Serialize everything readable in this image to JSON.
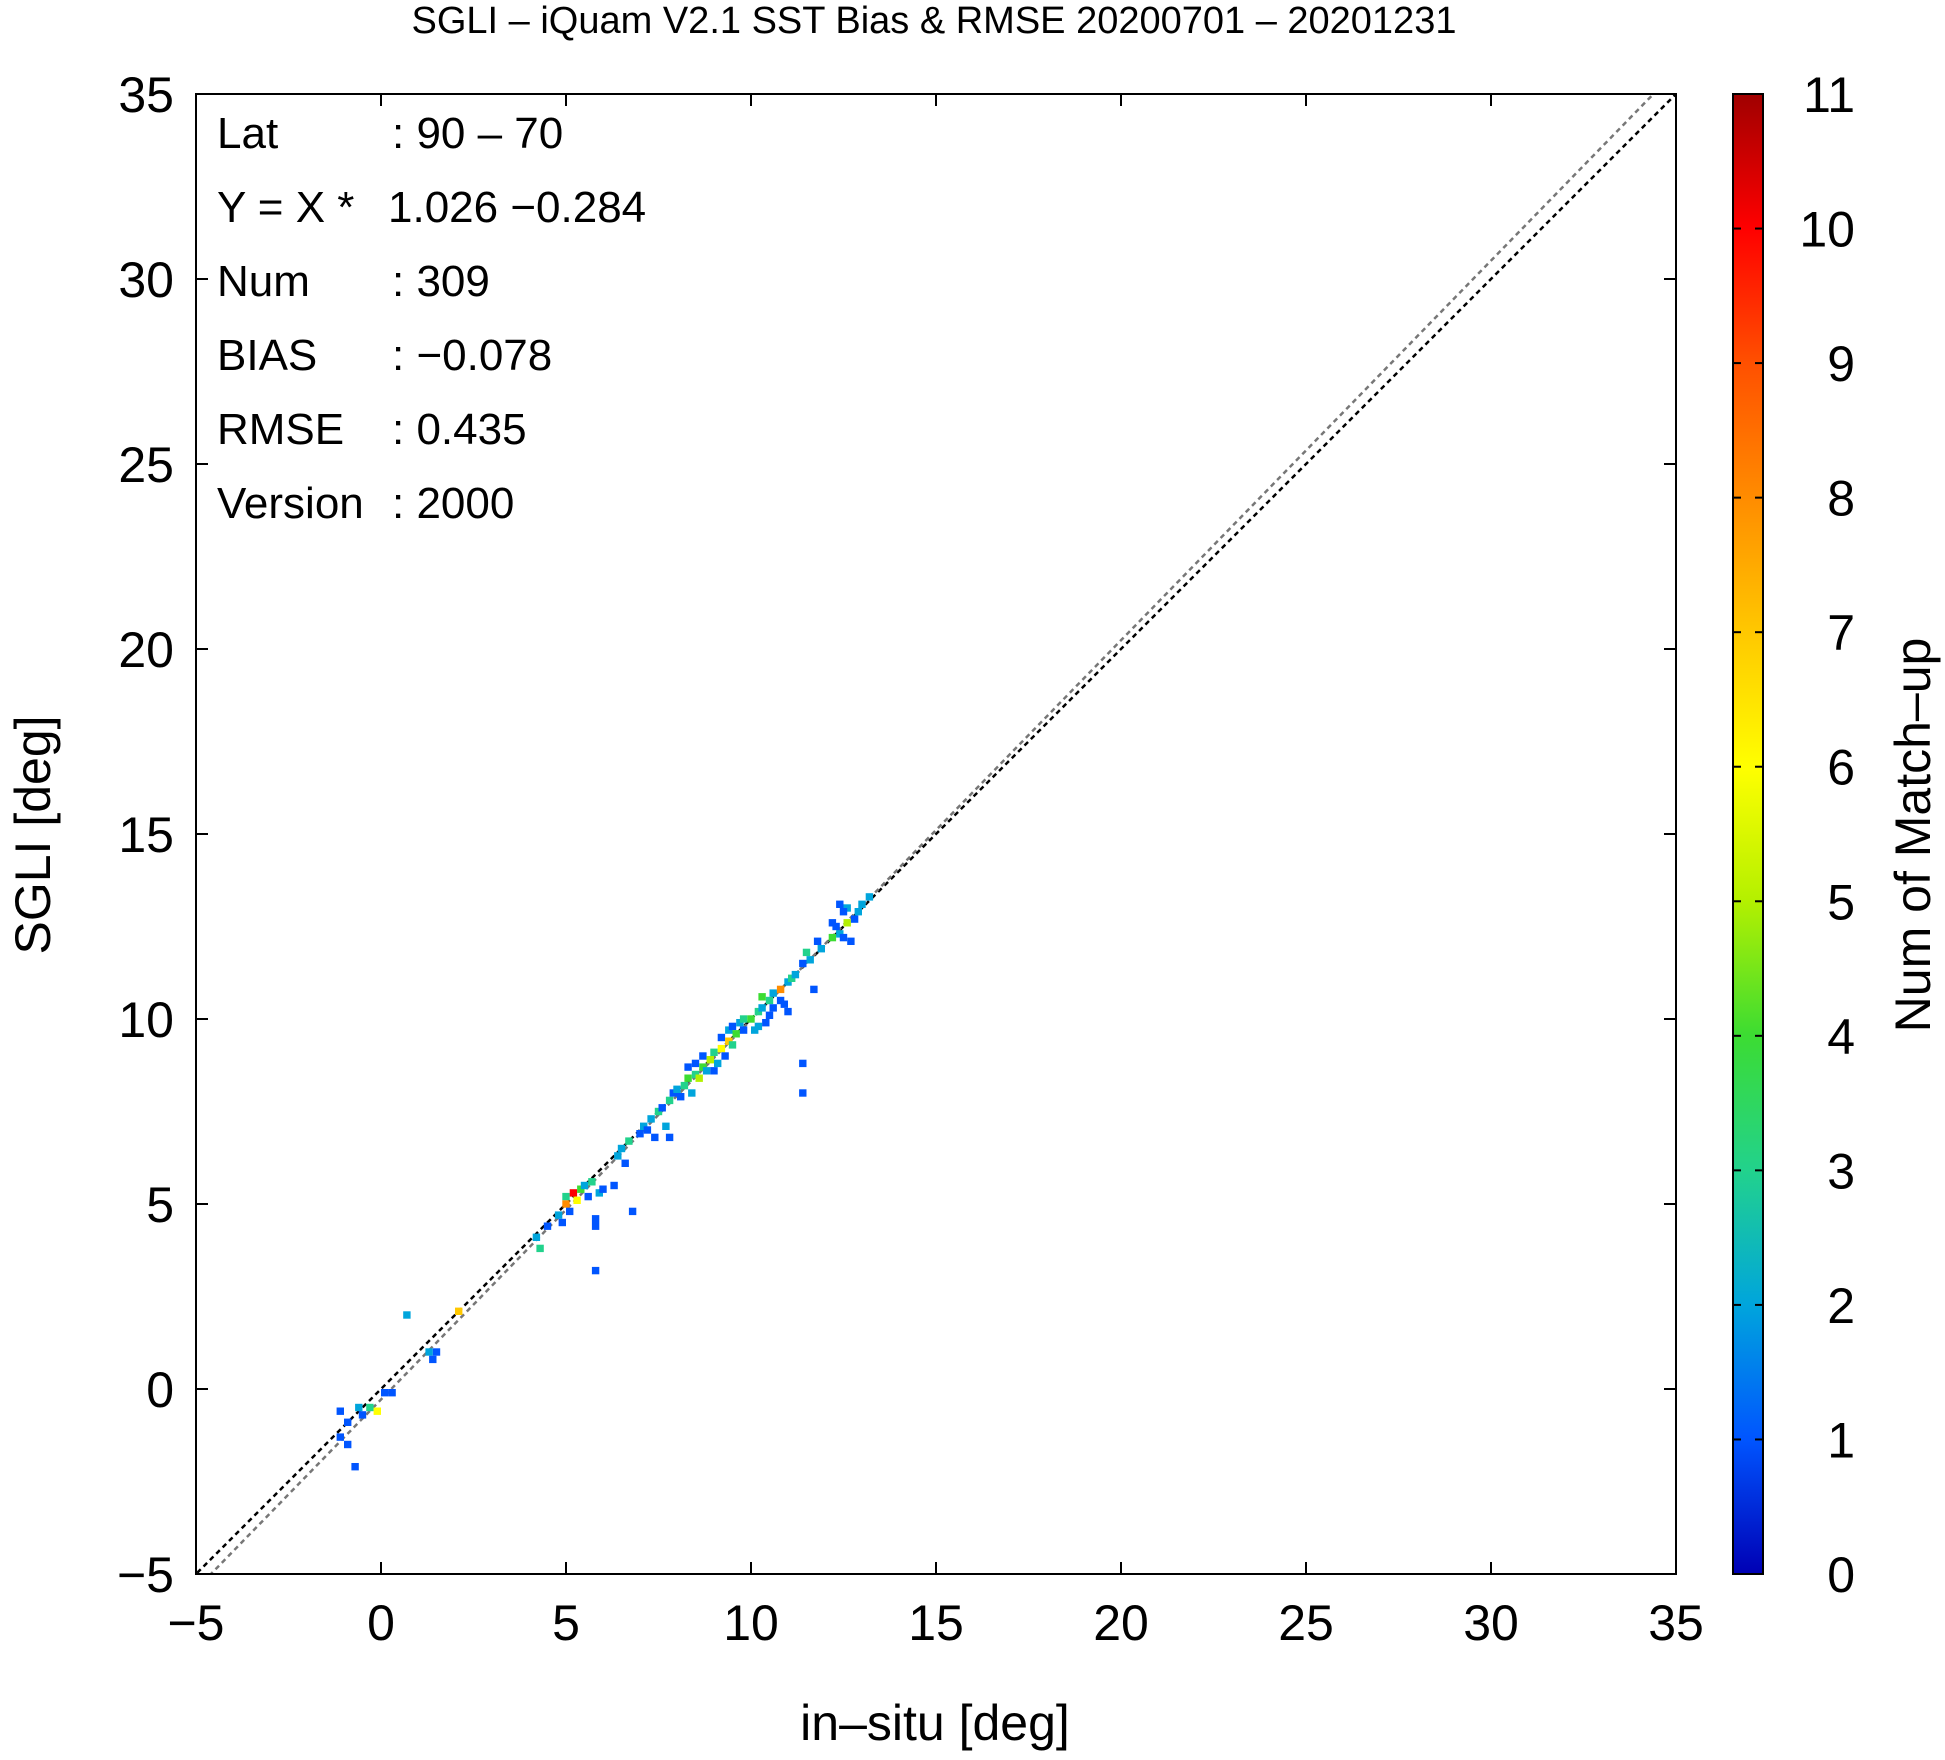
{
  "chart_data": {
    "type": "heatmap",
    "title": "SGLI – iQuam V2.1 SST Bias & RMSE 20200701 – 20201231",
    "xlabel": "in–situ [deg]",
    "ylabel": "SGLI [deg]",
    "xlim": [
      -5,
      35
    ],
    "ylim": [
      -5,
      35
    ],
    "x_ticks": [
      -5,
      0,
      5,
      10,
      15,
      20,
      25,
      30,
      35
    ],
    "y_ticks": [
      -5,
      0,
      5,
      10,
      15,
      20,
      25,
      30,
      35
    ],
    "x_tick_labels": [
      "−5",
      "0",
      "5",
      "10",
      "15",
      "20",
      "25",
      "30",
      "35"
    ],
    "y_tick_labels": [
      "−5",
      "0",
      "5",
      "10",
      "15",
      "20",
      "25",
      "30",
      "35"
    ],
    "bin_size": 0.2,
    "grid": false,
    "stats": [
      {
        "label": "Lat",
        "value": ": 90 – 70"
      },
      {
        "label": "Y = X *",
        "value": "1.026 −0.284"
      },
      {
        "label": "Num",
        "value": ": 309"
      },
      {
        "label": "BIAS",
        "value": ": −0.078"
      },
      {
        "label": "RMSE",
        "value": ": 0.435"
      },
      {
        "label": "Version",
        "value": ": 2000"
      }
    ],
    "lines": [
      {
        "type": "identity",
        "slope": 1,
        "intercept": 0,
        "color": "#000000",
        "dash": true
      },
      {
        "type": "regression",
        "slope": 1.026,
        "intercept": -0.284,
        "color": "#777777",
        "dash": true
      }
    ],
    "colorbar": {
      "label": "Num of Match–up",
      "min": 0,
      "max": 11,
      "ticks": [
        0,
        1,
        2,
        3,
        4,
        5,
        6,
        7,
        8,
        9,
        10,
        11
      ],
      "colors": [
        "#0000b4",
        "#0055ff",
        "#00a5dc",
        "#22d28c",
        "#3cdc32",
        "#b4f000",
        "#ffff00",
        "#ffc800",
        "#ff8c00",
        "#ff5000",
        "#ff0000",
        "#a00000"
      ]
    },
    "points": [
      [
        -1.1,
        -0.6,
        1
      ],
      [
        -0.9,
        -0.9,
        1
      ],
      [
        -1.1,
        -1.3,
        1
      ],
      [
        -0.9,
        -1.5,
        1
      ],
      [
        -0.7,
        -2.1,
        1
      ],
      [
        -0.6,
        -0.5,
        2
      ],
      [
        -0.5,
        -0.7,
        1
      ],
      [
        -0.3,
        -0.5,
        3
      ],
      [
        -0.1,
        -0.6,
        6
      ],
      [
        0.1,
        -0.1,
        1
      ],
      [
        0.3,
        -0.1,
        1
      ],
      [
        0.7,
        2.0,
        2
      ],
      [
        1.3,
        1.0,
        2
      ],
      [
        1.4,
        0.8,
        1
      ],
      [
        1.5,
        1.0,
        1
      ],
      [
        2.1,
        2.1,
        7
      ],
      [
        4.2,
        4.1,
        2
      ],
      [
        4.3,
        3.8,
        3
      ],
      [
        4.5,
        4.4,
        1
      ],
      [
        4.8,
        4.7,
        2
      ],
      [
        4.9,
        4.5,
        1
      ],
      [
        5.0,
        5.2,
        3
      ],
      [
        5.0,
        5.0,
        8
      ],
      [
        5.1,
        4.8,
        1
      ],
      [
        5.2,
        5.3,
        10
      ],
      [
        5.3,
        5.1,
        6
      ],
      [
        5.4,
        5.4,
        4
      ],
      [
        5.5,
        5.5,
        2
      ],
      [
        5.6,
        5.2,
        1
      ],
      [
        5.7,
        5.6,
        3
      ],
      [
        5.8,
        4.6,
        1
      ],
      [
        5.8,
        4.4,
        1
      ],
      [
        5.8,
        3.2,
        1
      ],
      [
        5.9,
        5.3,
        2
      ],
      [
        6.0,
        5.4,
        1
      ],
      [
        6.3,
        5.5,
        1
      ],
      [
        6.4,
        6.3,
        2
      ],
      [
        6.5,
        6.5,
        2
      ],
      [
        6.6,
        6.1,
        1
      ],
      [
        6.7,
        6.7,
        3
      ],
      [
        6.8,
        4.8,
        1
      ],
      [
        7.0,
        6.9,
        1
      ],
      [
        7.1,
        7.1,
        2
      ],
      [
        7.2,
        7.0,
        1
      ],
      [
        7.3,
        7.3,
        2
      ],
      [
        7.4,
        6.8,
        1
      ],
      [
        7.5,
        7.5,
        3
      ],
      [
        7.6,
        7.6,
        1
      ],
      [
        7.7,
        7.1,
        2
      ],
      [
        7.8,
        6.8,
        1
      ],
      [
        7.8,
        7.8,
        3
      ],
      [
        7.9,
        8.0,
        1
      ],
      [
        8.0,
        8.1,
        2
      ],
      [
        8.1,
        7.9,
        1
      ],
      [
        8.2,
        8.2,
        3
      ],
      [
        8.3,
        8.4,
        4
      ],
      [
        8.3,
        8.7,
        1
      ],
      [
        8.4,
        8.0,
        2
      ],
      [
        8.5,
        8.5,
        3
      ],
      [
        8.5,
        8.8,
        1
      ],
      [
        8.6,
        8.4,
        5
      ],
      [
        8.7,
        8.7,
        4
      ],
      [
        8.7,
        9.0,
        1
      ],
      [
        8.8,
        8.6,
        2
      ],
      [
        8.9,
        8.9,
        5
      ],
      [
        9.0,
        9.1,
        3
      ],
      [
        9.0,
        8.6,
        1
      ],
      [
        9.1,
        8.8,
        2
      ],
      [
        9.2,
        9.2,
        6
      ],
      [
        9.2,
        9.5,
        1
      ],
      [
        9.3,
        9.0,
        1
      ],
      [
        9.4,
        9.4,
        7
      ],
      [
        9.4,
        9.7,
        2
      ],
      [
        9.5,
        9.8,
        1
      ],
      [
        9.5,
        9.3,
        3
      ],
      [
        9.6,
        9.6,
        4
      ],
      [
        9.7,
        9.9,
        2
      ],
      [
        9.8,
        9.7,
        1
      ],
      [
        9.8,
        10.0,
        3
      ],
      [
        10.0,
        10.0,
        4
      ],
      [
        10.1,
        9.7,
        2
      ],
      [
        10.2,
        10.2,
        3
      ],
      [
        10.2,
        9.8,
        2
      ],
      [
        10.3,
        10.3,
        2
      ],
      [
        10.3,
        10.6,
        4
      ],
      [
        10.4,
        9.9,
        1
      ],
      [
        10.5,
        10.5,
        3
      ],
      [
        10.5,
        10.1,
        1
      ],
      [
        10.6,
        10.7,
        2
      ],
      [
        10.6,
        10.3,
        1
      ],
      [
        10.8,
        10.8,
        8
      ],
      [
        10.8,
        10.5,
        1
      ],
      [
        10.9,
        10.4,
        1
      ],
      [
        11.0,
        11.0,
        2
      ],
      [
        11.0,
        10.2,
        1
      ],
      [
        11.1,
        11.1,
        3
      ],
      [
        11.2,
        11.2,
        2
      ],
      [
        11.4,
        11.5,
        1
      ],
      [
        11.4,
        8.8,
        1
      ],
      [
        11.4,
        8.0,
        1
      ],
      [
        11.5,
        11.8,
        3
      ],
      [
        11.6,
        11.6,
        2
      ],
      [
        11.7,
        10.8,
        1
      ],
      [
        11.8,
        12.1,
        1
      ],
      [
        11.9,
        11.9,
        2
      ],
      [
        12.2,
        12.2,
        4
      ],
      [
        12.2,
        12.6,
        1
      ],
      [
        12.3,
        12.5,
        1
      ],
      [
        12.4,
        12.3,
        2
      ],
      [
        12.5,
        12.2,
        1
      ],
      [
        12.6,
        12.6,
        5
      ],
      [
        12.6,
        13.0,
        2
      ],
      [
        12.7,
        12.1,
        1
      ],
      [
        12.8,
        12.7,
        1
      ],
      [
        12.9,
        12.9,
        2
      ],
      [
        13.0,
        13.1,
        2
      ],
      [
        13.2,
        13.3,
        2
      ],
      [
        12.4,
        13.1,
        1
      ],
      [
        12.5,
        12.9,
        1
      ]
    ]
  }
}
